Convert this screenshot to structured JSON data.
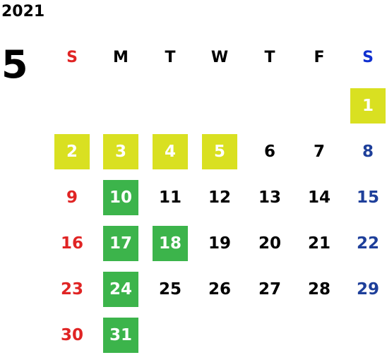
{
  "year": "2021",
  "month": "5",
  "weekdays": [
    "S",
    "M",
    "T",
    "W",
    "T",
    "F",
    "S"
  ],
  "colors": {
    "sunday": "#e02424",
    "saturday": "#1e3f9a",
    "holiday_yellow": "#d9e021",
    "holiday_green": "#3cb44b"
  },
  "weeks": [
    [
      {
        "d": ""
      },
      {
        "d": ""
      },
      {
        "d": ""
      },
      {
        "d": ""
      },
      {
        "d": ""
      },
      {
        "d": ""
      },
      {
        "d": "1",
        "h": "y"
      }
    ],
    [
      {
        "d": "2",
        "h": "y"
      },
      {
        "d": "3",
        "h": "y"
      },
      {
        "d": "4",
        "h": "y"
      },
      {
        "d": "5",
        "h": "y"
      },
      {
        "d": "6"
      },
      {
        "d": "7"
      },
      {
        "d": "8"
      }
    ],
    [
      {
        "d": "9"
      },
      {
        "d": "10",
        "h": "g"
      },
      {
        "d": "11"
      },
      {
        "d": "12"
      },
      {
        "d": "13"
      },
      {
        "d": "14"
      },
      {
        "d": "15"
      }
    ],
    [
      {
        "d": "16"
      },
      {
        "d": "17",
        "h": "g"
      },
      {
        "d": "18",
        "h": "g"
      },
      {
        "d": "19"
      },
      {
        "d": "20"
      },
      {
        "d": "21"
      },
      {
        "d": "22"
      }
    ],
    [
      {
        "d": "23"
      },
      {
        "d": "24",
        "h": "g"
      },
      {
        "d": "25"
      },
      {
        "d": "26"
      },
      {
        "d": "27"
      },
      {
        "d": "28"
      },
      {
        "d": "29"
      }
    ],
    [
      {
        "d": "30"
      },
      {
        "d": "31",
        "h": "g"
      },
      {
        "d": ""
      },
      {
        "d": ""
      },
      {
        "d": ""
      },
      {
        "d": ""
      },
      {
        "d": ""
      }
    ]
  ]
}
